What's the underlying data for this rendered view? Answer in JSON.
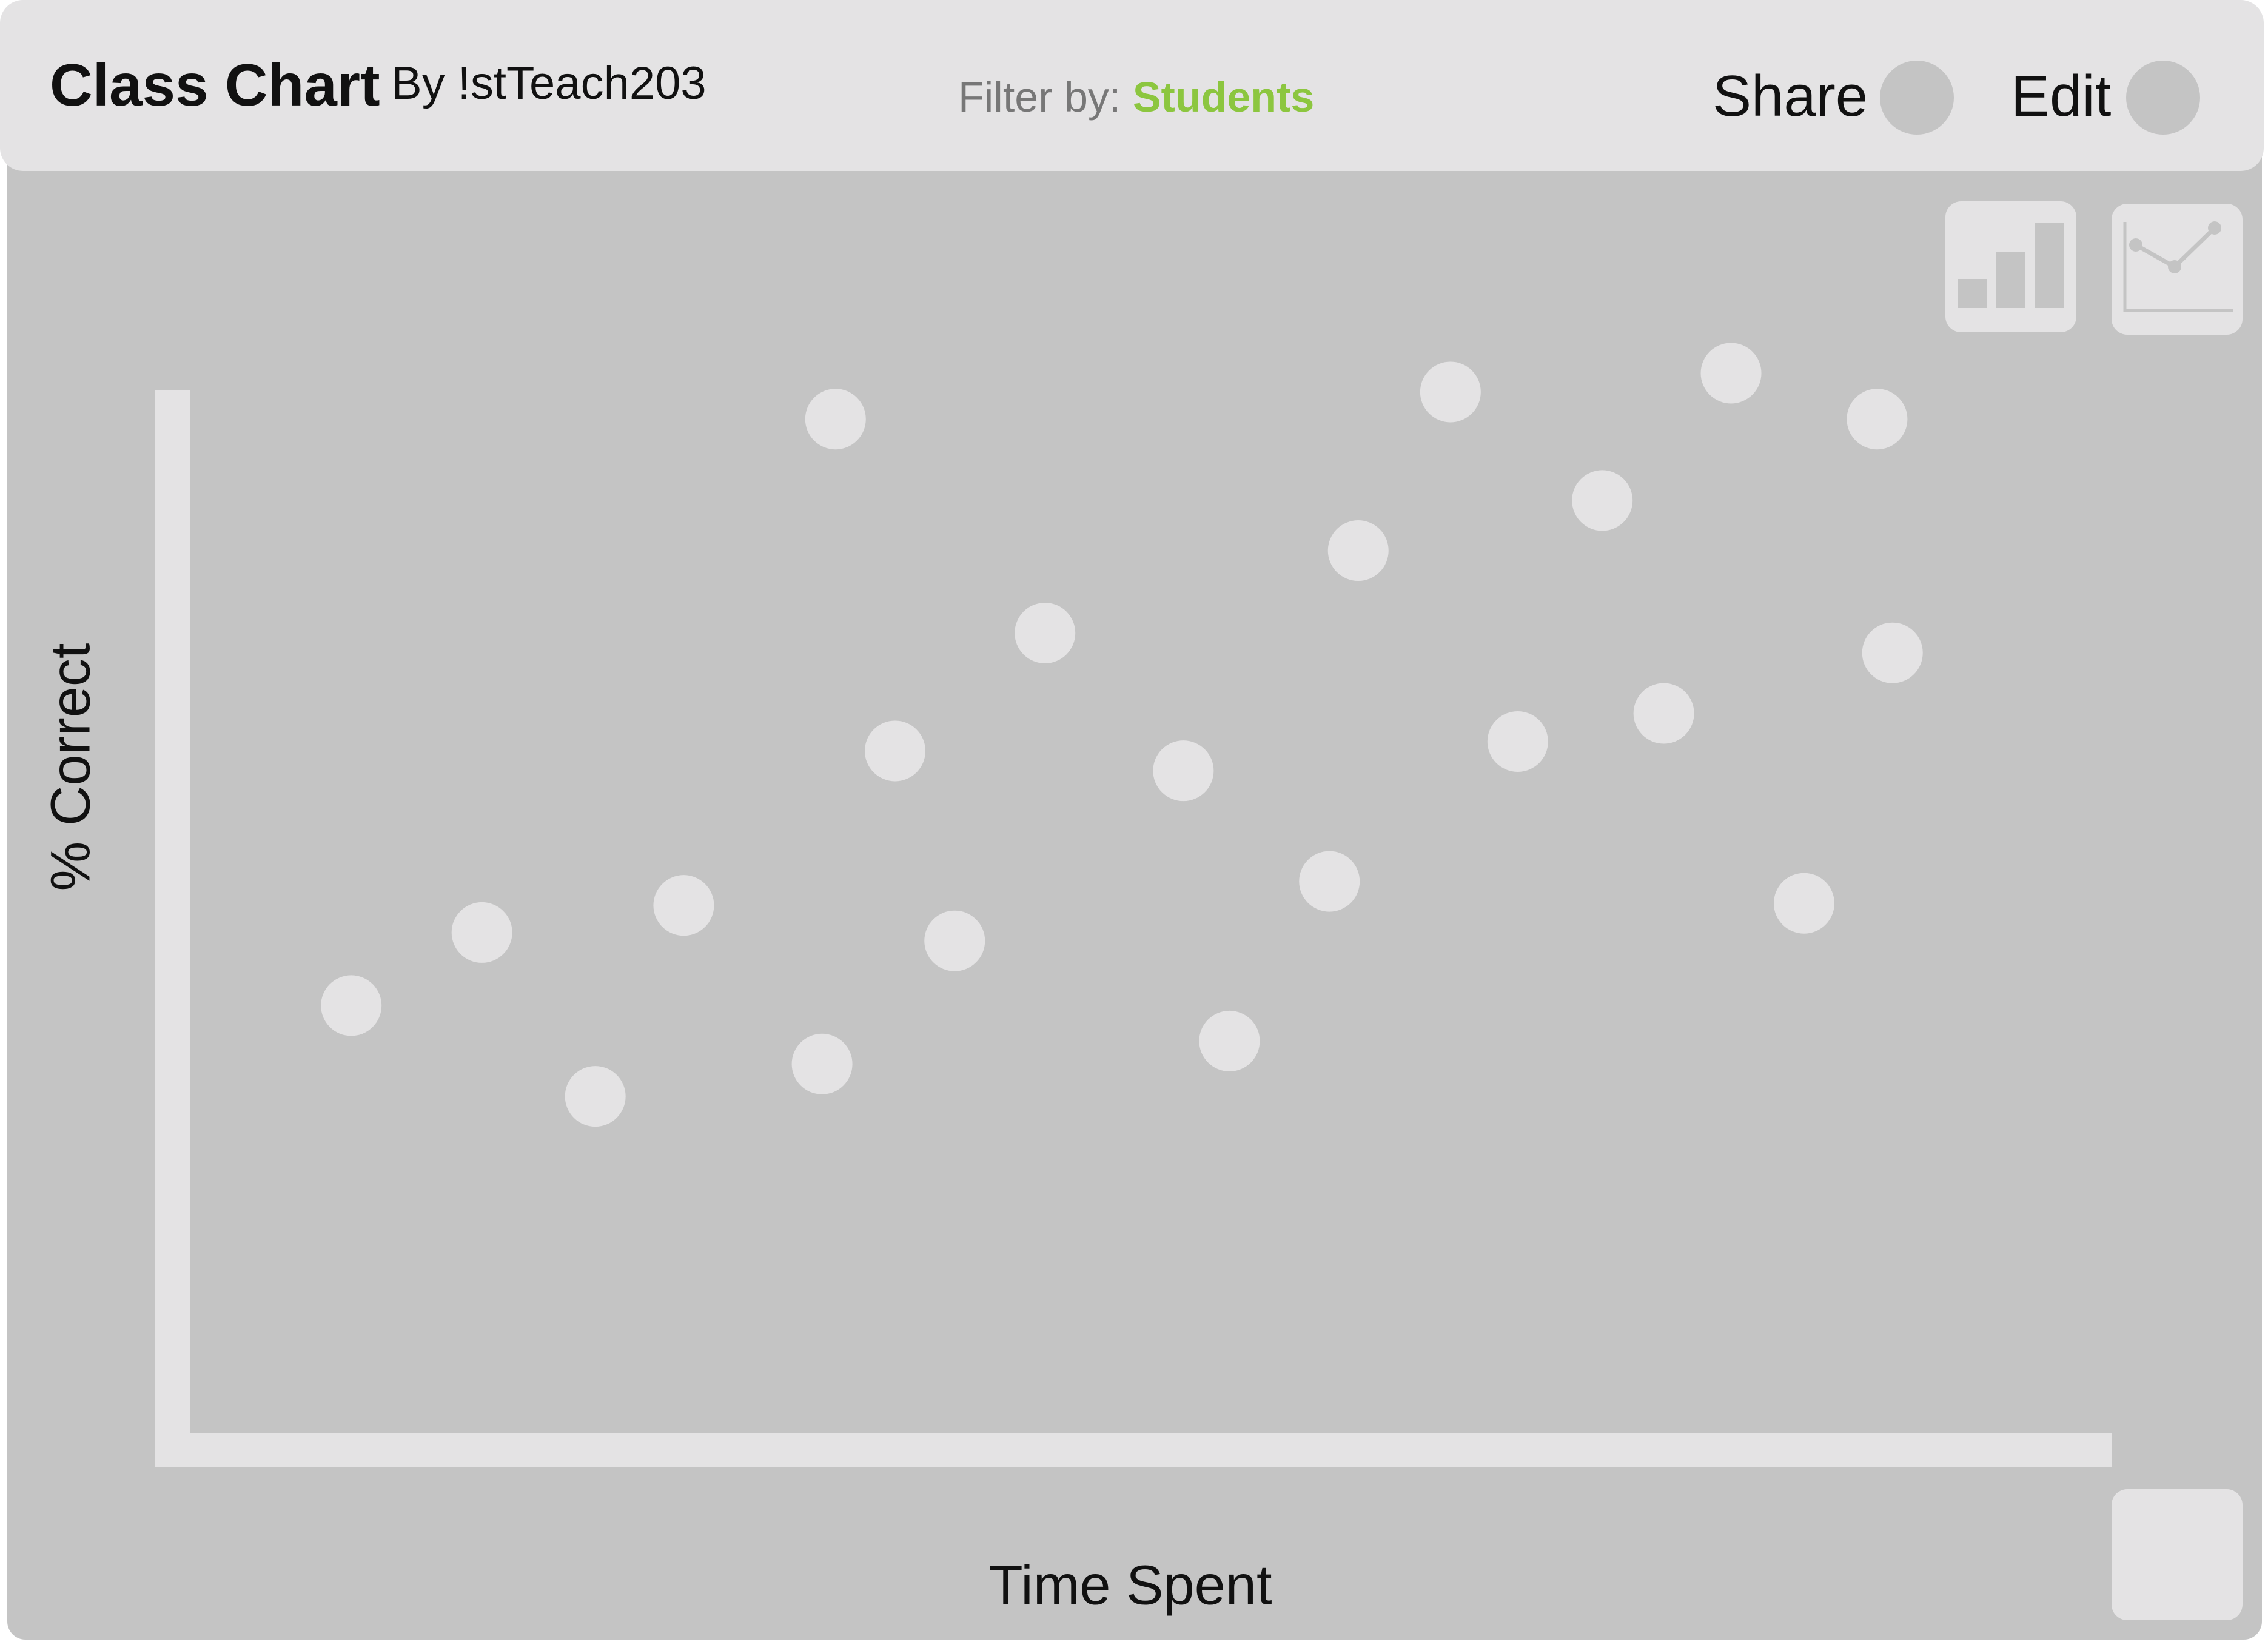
{
  "header": {
    "title": "Class Chart",
    "author": "By !stTeach203",
    "filter_label": "Filter by:",
    "filter_value": "Students",
    "share_label": "Share",
    "edit_label": "Edit"
  },
  "toolbar": {
    "bar_chart_button": "bar-chart-icon",
    "line_chart_button": "line-chart-icon"
  },
  "colors": {
    "accent": "#8cc63f",
    "panel": "#c4c4c4",
    "header": "#e4e3e4",
    "marker": "#e4e3e4"
  },
  "chart_data": {
    "type": "scatter",
    "xlabel": "Time Spent",
    "ylabel": "% Correct",
    "xlim": [
      0,
      100
    ],
    "ylim": [
      0,
      100
    ],
    "grid": false,
    "points": [
      {
        "x": 8.4,
        "y": 41.0
      },
      {
        "x": 15.2,
        "y": 48.0
      },
      {
        "x": 21.1,
        "y": 32.3
      },
      {
        "x": 25.7,
        "y": 50.6
      },
      {
        "x": 32.9,
        "y": 35.4
      },
      {
        "x": 33.6,
        "y": 97.2
      },
      {
        "x": 36.7,
        "y": 65.4
      },
      {
        "x": 39.8,
        "y": 47.2
      },
      {
        "x": 44.5,
        "y": 76.7
      },
      {
        "x": 51.7,
        "y": 63.5
      },
      {
        "x": 54.1,
        "y": 37.6
      },
      {
        "x": 59.3,
        "y": 52.9
      },
      {
        "x": 60.8,
        "y": 84.6
      },
      {
        "x": 65.6,
        "y": 99.8
      },
      {
        "x": 69.1,
        "y": 66.3
      },
      {
        "x": 73.5,
        "y": 89.4
      },
      {
        "x": 76.7,
        "y": 69.0
      },
      {
        "x": 80.2,
        "y": 101.6
      },
      {
        "x": 84.0,
        "y": 50.8
      },
      {
        "x": 87.8,
        "y": 97.2
      },
      {
        "x": 88.6,
        "y": 74.8
      }
    ]
  }
}
